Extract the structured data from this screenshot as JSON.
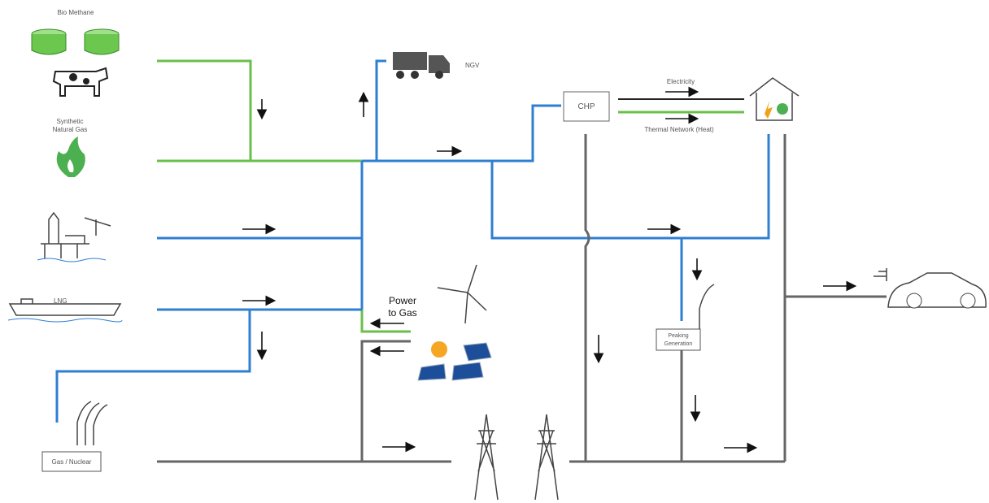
{
  "labels": {
    "bio_methane": "Bio Methane",
    "synthetic_natural_gas": [
      "Synthetic",
      "Natural Gas"
    ],
    "lng": "LNG",
    "gas_nuclear": "Gas / Nuclear",
    "ngv": "NGV",
    "chp": "CHP",
    "electricity": "Electricity",
    "thermal_network": "Thermal Network (Heat)",
    "power_to_gas": [
      "Power",
      "to Gas"
    ],
    "peaking_generation": [
      "Peaking",
      "Generation"
    ]
  }
}
